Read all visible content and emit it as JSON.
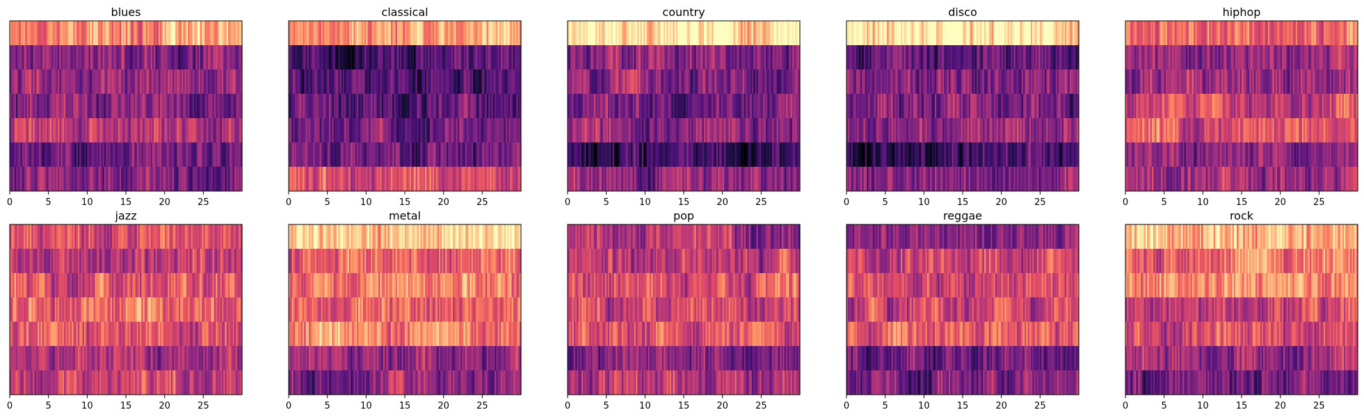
{
  "chart_data": {
    "type": "heatmap",
    "colormap": "magma",
    "xlim": [
      0,
      30
    ],
    "x_ticks": [
      0,
      5,
      10,
      15,
      20,
      25
    ],
    "grid": false,
    "panels": [
      {
        "title": "blues",
        "band_levels": [
          0.78,
          0.38,
          0.45,
          0.38,
          0.5,
          0.33,
          0.38
        ]
      },
      {
        "title": "classical",
        "band_levels": [
          0.8,
          0.25,
          0.3,
          0.28,
          0.35,
          0.32,
          0.62
        ]
      },
      {
        "title": "country",
        "band_levels": [
          0.96,
          0.38,
          0.4,
          0.35,
          0.4,
          0.2,
          0.42
        ]
      },
      {
        "title": "disco",
        "band_levels": [
          0.95,
          0.35,
          0.4,
          0.38,
          0.4,
          0.22,
          0.4
        ]
      },
      {
        "title": "hiphop",
        "band_levels": [
          0.72,
          0.45,
          0.42,
          0.58,
          0.62,
          0.4,
          0.45
        ]
      },
      {
        "title": "jazz",
        "band_levels": [
          0.6,
          0.55,
          0.62,
          0.7,
          0.58,
          0.45,
          0.55
        ]
      },
      {
        "title": "metal",
        "band_levels": [
          0.9,
          0.65,
          0.72,
          0.68,
          0.72,
          0.42,
          0.38
        ]
      },
      {
        "title": "pop",
        "band_levels": [
          0.45,
          0.55,
          0.62,
          0.58,
          0.6,
          0.4,
          0.5
        ]
      },
      {
        "title": "reggae",
        "band_levels": [
          0.4,
          0.55,
          0.6,
          0.55,
          0.62,
          0.35,
          0.38
        ]
      },
      {
        "title": "rock",
        "band_levels": [
          0.85,
          0.7,
          0.78,
          0.55,
          0.6,
          0.48,
          0.35
        ]
      }
    ]
  }
}
